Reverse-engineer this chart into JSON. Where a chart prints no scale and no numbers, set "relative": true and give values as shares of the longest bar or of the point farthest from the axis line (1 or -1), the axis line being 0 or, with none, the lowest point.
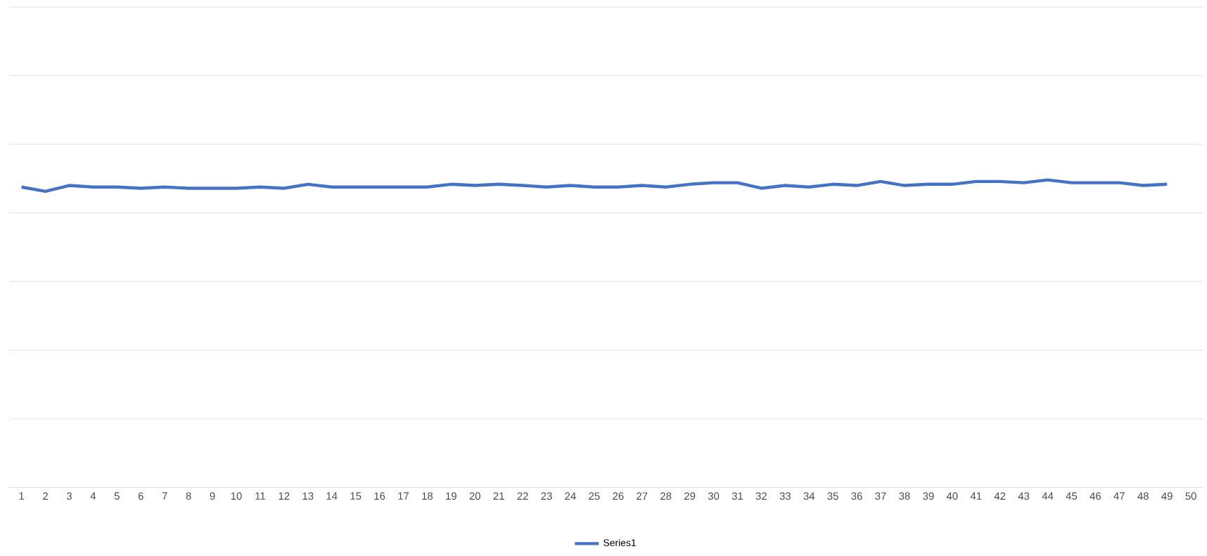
{
  "chart_data": {
    "type": "line",
    "relative": true,
    "grid": "y",
    "legend": "bottom",
    "marker": "none",
    "line_style": "solid",
    "categories": [
      "1",
      "2",
      "3",
      "4",
      "5",
      "6",
      "7",
      "8",
      "9",
      "10",
      "11",
      "12",
      "13",
      "14",
      "15",
      "16",
      "17",
      "18",
      "19",
      "20",
      "21",
      "22",
      "23",
      "24",
      "25",
      "26",
      "27",
      "28",
      "29",
      "30",
      "31",
      "32",
      "33",
      "34",
      "35",
      "36",
      "37",
      "38",
      "39",
      "40",
      "41",
      "42",
      "43",
      "44",
      "45",
      "46",
      "47",
      "48",
      "49",
      "50"
    ],
    "series": [
      {
        "name": "Series1",
        "color": "#4472c4",
        "values": [
          0.977,
          0.963,
          0.982,
          0.977,
          0.977,
          0.973,
          0.977,
          0.973,
          0.973,
          0.973,
          0.977,
          0.973,
          0.986,
          0.977,
          0.977,
          0.977,
          0.977,
          0.977,
          0.986,
          0.982,
          0.986,
          0.982,
          0.977,
          0.982,
          0.977,
          0.977,
          0.982,
          0.977,
          0.986,
          0.991,
          0.991,
          0.973,
          0.982,
          0.977,
          0.986,
          0.982,
          0.995,
          0.982,
          0.986,
          0.986,
          0.995,
          0.995,
          0.991,
          1,
          0.991,
          0.991,
          0.991,
          0.982,
          0.986,
          null
        ]
      }
    ]
  }
}
